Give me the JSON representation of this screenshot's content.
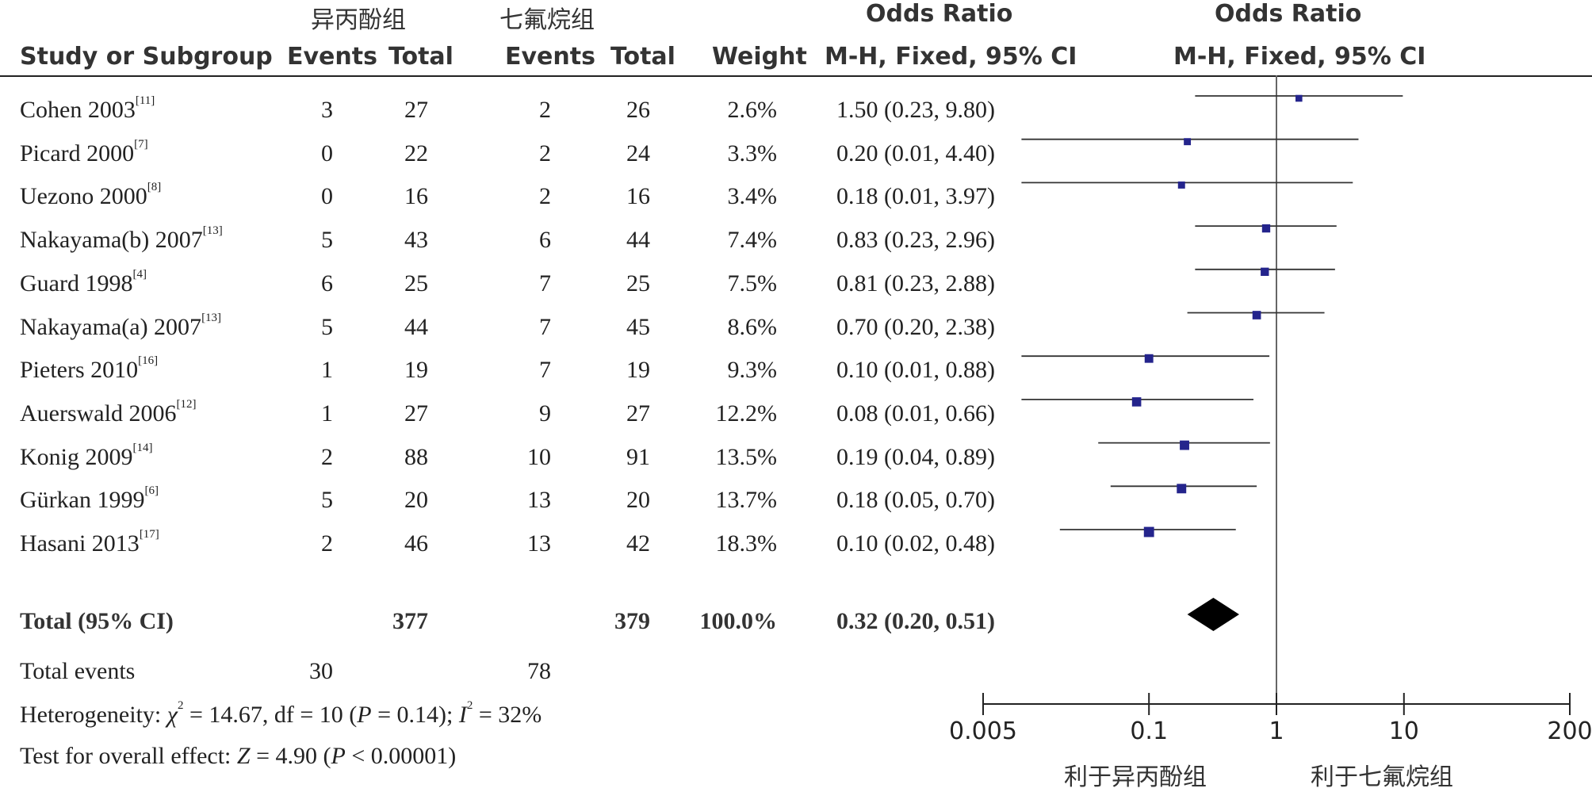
{
  "header": {
    "group1": "异丙酚组",
    "group2": "七氟烷组",
    "or_label_left": "Odds Ratio",
    "or_label_right": "Odds Ratio",
    "study_col": "Study or Subgroup",
    "events1": "Events",
    "total1": "Total",
    "events2": "Events",
    "total2": "Total",
    "weight": "Weight",
    "method_left": "M-H, Fixed, 95% CI",
    "method_right": "M-H, Fixed, 95% CI"
  },
  "rows": [
    {
      "name": "Cohen 2003",
      "ref": "[11]",
      "e1": "3",
      "t1": "27",
      "e2": "2",
      "t2": "26",
      "weight": "2.6%",
      "ci": "1.50 (0.23, 9.80)"
    },
    {
      "name": "Picard 2000",
      "ref": "[7]",
      "e1": "0",
      "t1": "22",
      "e2": "2",
      "t2": "24",
      "weight": "3.3%",
      "ci": "0.20 (0.01, 4.40)"
    },
    {
      "name": "Uezono 2000",
      "ref": "[8]",
      "e1": "0",
      "t1": "16",
      "e2": "2",
      "t2": "16",
      "weight": "3.4%",
      "ci": "0.18 (0.01, 3.97)"
    },
    {
      "name": "Nakayama(b) 2007",
      "ref": "[13]",
      "e1": "5",
      "t1": "43",
      "e2": "6",
      "t2": "44",
      "weight": "7.4%",
      "ci": "0.83 (0.23, 2.96)"
    },
    {
      "name": "Guard 1998",
      "ref": "[4]",
      "e1": "6",
      "t1": "25",
      "e2": "7",
      "t2": "25",
      "weight": "7.5%",
      "ci": "0.81 (0.23, 2.88)"
    },
    {
      "name": "Nakayama(a) 2007",
      "ref": "[13]",
      "e1": "5",
      "t1": "44",
      "e2": "7",
      "t2": "45",
      "weight": "8.6%",
      "ci": "0.70 (0.20, 2.38)"
    },
    {
      "name": "Pieters 2010",
      "ref": "[16]",
      "e1": "1",
      "t1": "19",
      "e2": "7",
      "t2": "19",
      "weight": "9.3%",
      "ci": "0.10 (0.01, 0.88)"
    },
    {
      "name": "Auerswald 2006",
      "ref": "[12]",
      "e1": "1",
      "t1": "27",
      "e2": "9",
      "t2": "27",
      "weight": "12.2%",
      "ci": "0.08 (0.01, 0.66)"
    },
    {
      "name": "Konig 2009",
      "ref": "[14]",
      "e1": "2",
      "t1": "88",
      "e2": "10",
      "t2": "91",
      "weight": "13.5%",
      "ci": "0.19 (0.04, 0.89)"
    },
    {
      "name": "Gürkan 1999",
      "ref": "[6]",
      "e1": "5",
      "t1": "20",
      "e2": "13",
      "t2": "20",
      "weight": "13.7%",
      "ci": "0.18 (0.05, 0.70)"
    },
    {
      "name": "Hasani 2013",
      "ref": "[17]",
      "e1": "2",
      "t1": "46",
      "e2": "13",
      "t2": "42",
      "weight": "18.3%",
      "ci": "0.10 (0.02, 0.48)"
    }
  ],
  "total": {
    "label": "Total (95% CI)",
    "t1": "377",
    "t2": "379",
    "weight": "100.0%",
    "ci": "0.32 (0.20, 0.51)"
  },
  "total_events": {
    "label": "Total events",
    "e1": "30",
    "e2": "78"
  },
  "heterogeneity": {
    "prefix": "Heterogeneity: ",
    "chi": "χ",
    "chi_rest": " = 14.67, df = 10 (",
    "p": "P",
    "p_rest": " = 0.14); ",
    "i": "I",
    "i_rest": " = 32%"
  },
  "overall": {
    "prefix": "Test for overall effect: ",
    "z": "Z",
    "z_rest": " = 4.90 (",
    "p": "P",
    "p_rest": " < 0.00001)"
  },
  "axis": {
    "ticks": [
      "0.005",
      "0.1",
      "1",
      "10",
      "200"
    ],
    "favours_left": "利于异丙酚组",
    "favours_right": "利于七氟烷组"
  },
  "colors": {
    "square": "#24248c",
    "diamond": "#000000",
    "line": "#333333"
  },
  "chart_data": {
    "type": "forest",
    "scale": "log",
    "xlim": [
      0.005,
      200
    ],
    "ticks": [
      0.005,
      0.1,
      1,
      10,
      200
    ],
    "reference": 1,
    "studies": [
      {
        "name": "Cohen 2003",
        "or": 1.5,
        "lo": 0.23,
        "hi": 9.8,
        "weight": 2.6
      },
      {
        "name": "Picard 2000",
        "or": 0.2,
        "lo": 0.01,
        "hi": 4.4,
        "weight": 3.3
      },
      {
        "name": "Uezono 2000",
        "or": 0.18,
        "lo": 0.01,
        "hi": 3.97,
        "weight": 3.4
      },
      {
        "name": "Nakayama(b) 2007",
        "or": 0.83,
        "lo": 0.23,
        "hi": 2.96,
        "weight": 7.4
      },
      {
        "name": "Guard 1998",
        "or": 0.81,
        "lo": 0.23,
        "hi": 2.88,
        "weight": 7.5
      },
      {
        "name": "Nakayama(a) 2007",
        "or": 0.7,
        "lo": 0.2,
        "hi": 2.38,
        "weight": 8.6
      },
      {
        "name": "Pieters 2010",
        "or": 0.1,
        "lo": 0.01,
        "hi": 0.88,
        "weight": 9.3
      },
      {
        "name": "Auerswald 2006",
        "or": 0.08,
        "lo": 0.01,
        "hi": 0.66,
        "weight": 12.2
      },
      {
        "name": "Konig 2009",
        "or": 0.19,
        "lo": 0.04,
        "hi": 0.89,
        "weight": 13.5
      },
      {
        "name": "Gürkan 1999",
        "or": 0.18,
        "lo": 0.05,
        "hi": 0.7,
        "weight": 13.7
      },
      {
        "name": "Hasani 2013",
        "or": 0.1,
        "lo": 0.02,
        "hi": 0.48,
        "weight": 18.3
      }
    ],
    "pooled": {
      "or": 0.32,
      "lo": 0.2,
      "hi": 0.51,
      "weight": 100.0
    }
  }
}
